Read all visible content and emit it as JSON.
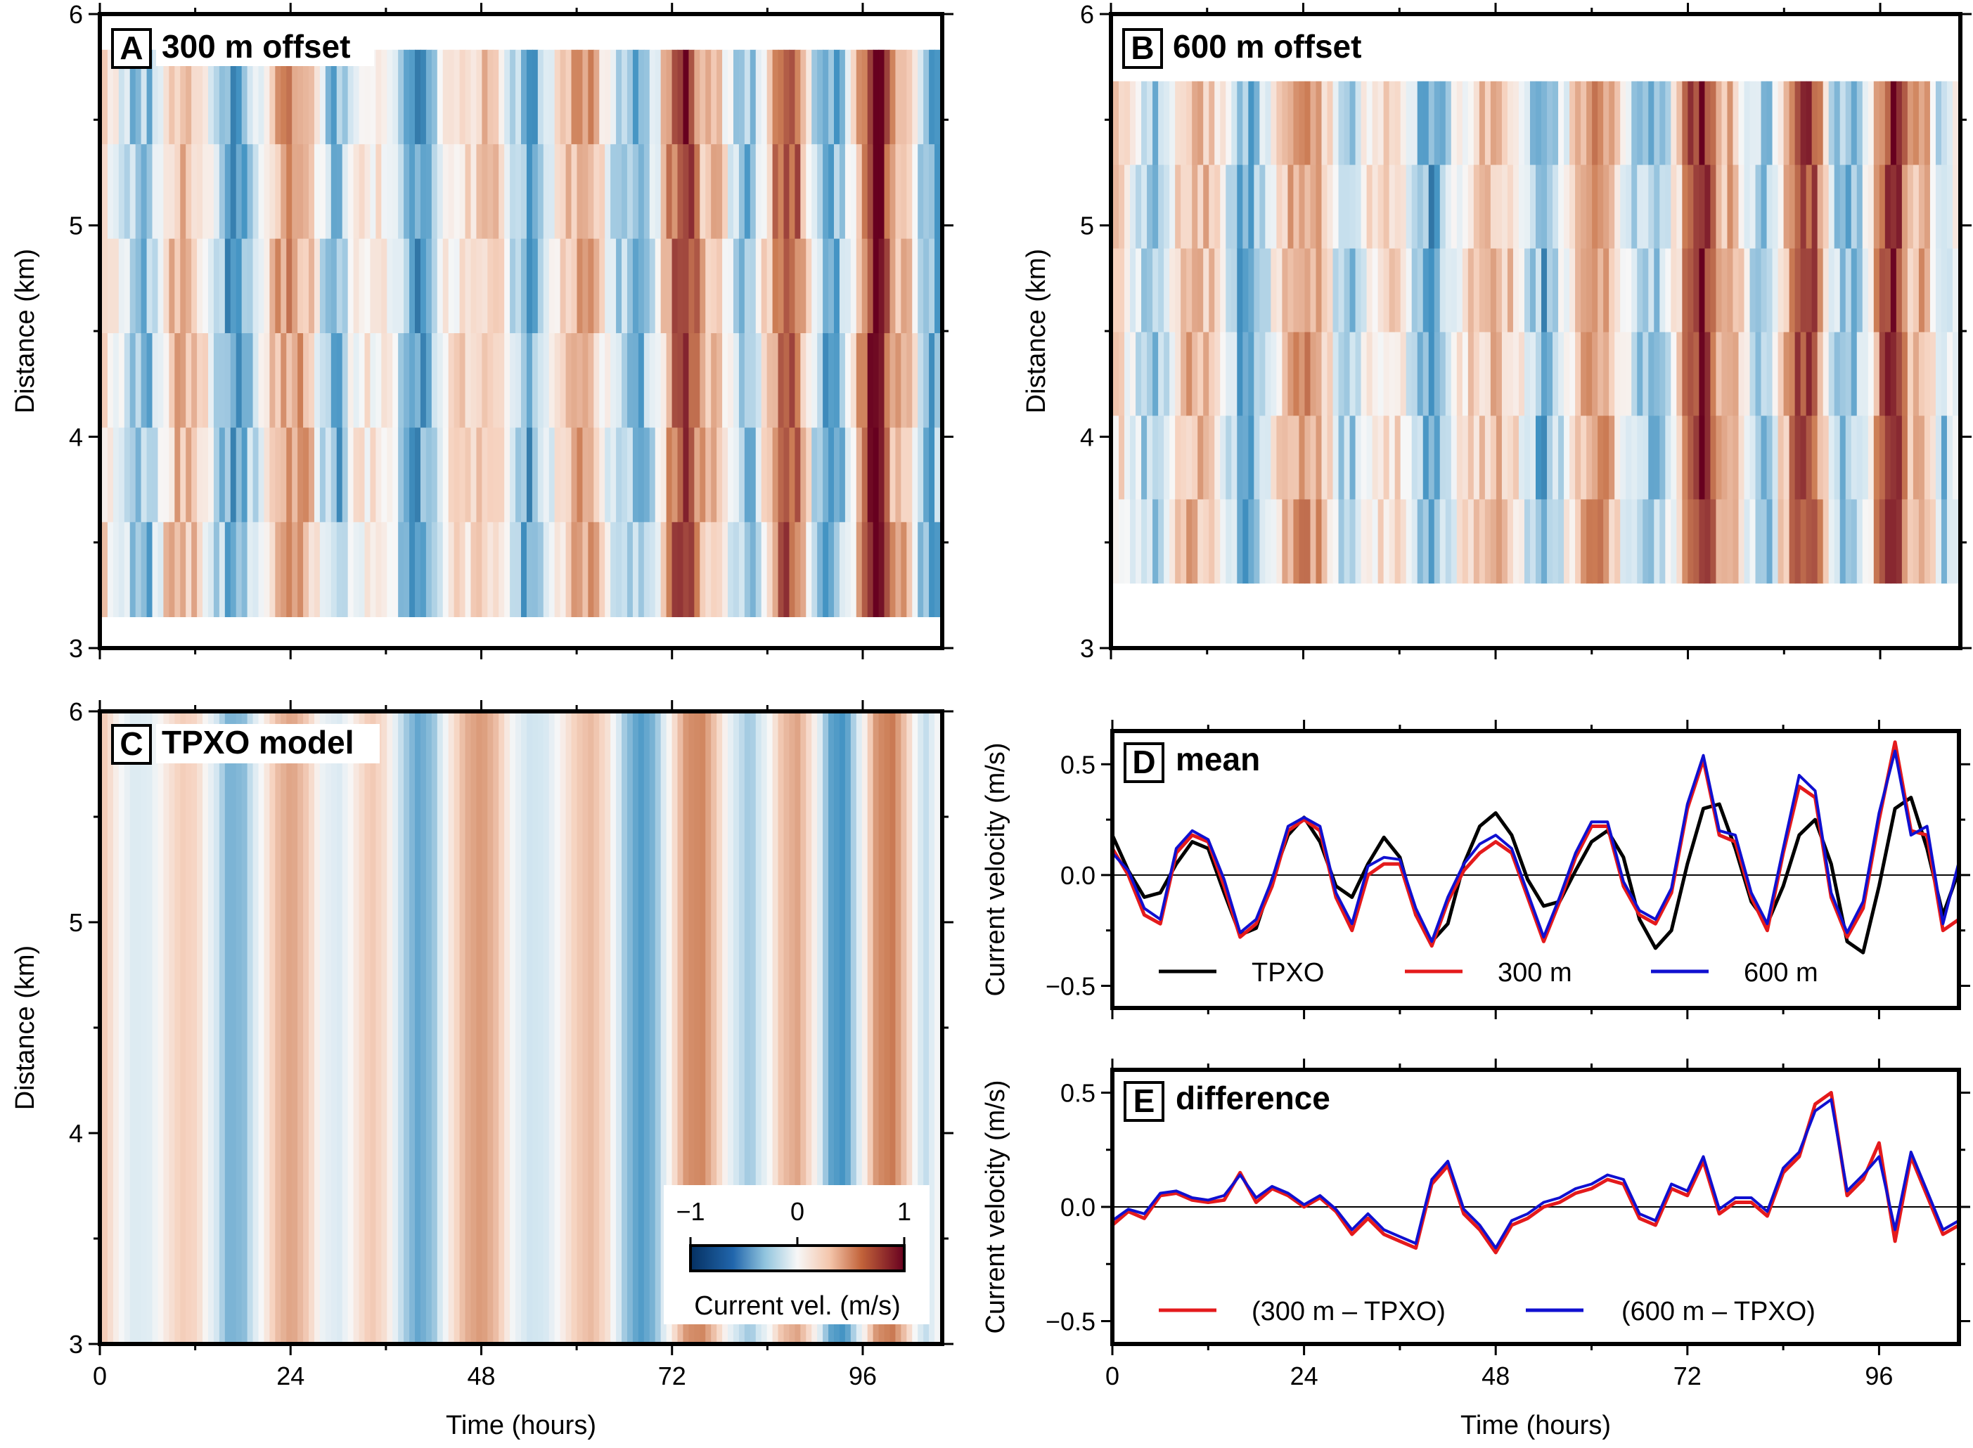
{
  "colors": {
    "neg_strong": "#053061",
    "neg_mid": "#4393c3",
    "neg_light": "#d1e5f0",
    "zero": "#f7f7f7",
    "pos_light": "#f6d2bf",
    "pos_mid": "#cc7d55",
    "pos_strong": "#67001f",
    "tpxo_line": "#000000",
    "line_300": "#e41a1c",
    "line_600": "#1010d0"
  },
  "chart_data": [
    {
      "panel": "A",
      "type": "heatmap",
      "title": "300 m offset",
      "xlabel": "",
      "ylabel": "Distance (km)",
      "xlim": [
        0,
        106
      ],
      "ylim": [
        3,
        6
      ],
      "xticks": [
        0,
        24,
        48,
        72,
        96
      ],
      "yticks": [
        "3",
        "4",
        "5",
        "6"
      ],
      "data_extent_km": [
        3.14,
        5.84
      ],
      "colorscale": [
        -1,
        1
      ]
    },
    {
      "panel": "B",
      "type": "heatmap",
      "title": "600 m offset",
      "xlabel": "",
      "ylabel": "Distance (km)",
      "xlim": [
        0,
        106
      ],
      "ylim": [
        3,
        6
      ],
      "xticks": [
        0,
        24,
        48,
        72,
        96
      ],
      "yticks": [
        "3",
        "4",
        "5",
        "6"
      ],
      "data_extent_km": [
        3.3,
        5.69
      ],
      "colorscale": [
        -1,
        1
      ]
    },
    {
      "panel": "C",
      "type": "heatmap",
      "title": "TPXO model",
      "xlabel": "Time (hours)",
      "ylabel": "Distance (km)",
      "xlim": [
        0,
        106
      ],
      "ylim": [
        3,
        6
      ],
      "xticks": [
        "0",
        "24",
        "48",
        "72",
        "96"
      ],
      "yticks": [
        "3",
        "4",
        "5",
        "6"
      ],
      "colorscale": [
        -1,
        1
      ],
      "colorbar": {
        "label": "Current vel. (m/s)",
        "ticks": [
          "−1",
          "0",
          "1"
        ]
      }
    },
    {
      "panel": "D",
      "type": "line",
      "title": "mean",
      "xlabel": "",
      "ylabel": "Current velocity (m/s)",
      "xlim": [
        0,
        106
      ],
      "ylim": [
        -0.6,
        0.65
      ],
      "xticks": [
        0,
        24,
        48,
        72,
        96
      ],
      "yticks": [
        "−0.5",
        "0.0",
        "0.5"
      ],
      "x": [
        0,
        2,
        4,
        6,
        8,
        10,
        12,
        14,
        16,
        18,
        20,
        22,
        24,
        26,
        28,
        30,
        32,
        34,
        36,
        38,
        40,
        42,
        44,
        46,
        48,
        50,
        52,
        54,
        56,
        58,
        60,
        62,
        64,
        66,
        68,
        70,
        72,
        74,
        76,
        78,
        80,
        82,
        84,
        86,
        88,
        90,
        92,
        94,
        96,
        98,
        100,
        102,
        104,
        106
      ],
      "series": [
        {
          "name": "TPXO",
          "values": [
            0.18,
            0.02,
            -0.1,
            -0.08,
            0.05,
            0.15,
            0.12,
            -0.08,
            -0.27,
            -0.24,
            -0.02,
            0.18,
            0.26,
            0.15,
            -0.05,
            -0.1,
            0.05,
            0.17,
            0.08,
            -0.18,
            -0.3,
            -0.22,
            0.05,
            0.22,
            0.28,
            0.18,
            -0.02,
            -0.14,
            -0.12,
            0.02,
            0.15,
            0.2,
            0.08,
            -0.2,
            -0.33,
            -0.25,
            0.05,
            0.3,
            0.32,
            0.12,
            -0.12,
            -0.22,
            -0.05,
            0.18,
            0.25,
            0.05,
            -0.3,
            -0.35,
            -0.05,
            0.3,
            0.35,
            0.12,
            -0.18,
            0.02
          ]
        },
        {
          "name": "300 m",
          "values": [
            0.12,
            0.0,
            -0.18,
            -0.22,
            0.1,
            0.18,
            0.15,
            -0.05,
            -0.28,
            -0.22,
            -0.05,
            0.2,
            0.25,
            0.2,
            -0.1,
            -0.25,
            0.0,
            0.05,
            0.05,
            -0.18,
            -0.32,
            -0.12,
            0.02,
            0.1,
            0.15,
            0.1,
            -0.1,
            -0.3,
            -0.12,
            0.08,
            0.22,
            0.22,
            -0.05,
            -0.18,
            -0.22,
            -0.08,
            0.3,
            0.52,
            0.18,
            0.15,
            -0.1,
            -0.25,
            0.1,
            0.4,
            0.35,
            -0.1,
            -0.28,
            -0.15,
            0.25,
            0.6,
            0.2,
            0.18,
            -0.25,
            -0.2
          ]
        },
        {
          "name": "600 m",
          "values": [
            0.1,
            0.02,
            -0.15,
            -0.2,
            0.12,
            0.2,
            0.16,
            -0.02,
            -0.26,
            -0.2,
            -0.02,
            0.22,
            0.26,
            0.22,
            -0.08,
            -0.22,
            0.04,
            0.08,
            0.07,
            -0.15,
            -0.3,
            -0.1,
            0.05,
            0.14,
            0.18,
            0.12,
            -0.08,
            -0.28,
            -0.1,
            0.1,
            0.24,
            0.24,
            -0.03,
            -0.16,
            -0.2,
            -0.06,
            0.32,
            0.54,
            0.2,
            0.18,
            -0.08,
            -0.22,
            0.12,
            0.45,
            0.38,
            -0.08,
            -0.26,
            -0.12,
            0.28,
            0.56,
            0.18,
            0.22,
            -0.22,
            0.06
          ]
        }
      ],
      "legend": [
        "TPXO",
        "300 m",
        "600 m"
      ]
    },
    {
      "panel": "E",
      "type": "line",
      "title": "difference",
      "xlabel": "Time (hours)",
      "ylabel": "Current velocity (m/s)",
      "xlim": [
        0,
        106
      ],
      "ylim": [
        -0.6,
        0.6
      ],
      "xticks": [
        "0",
        "24",
        "48",
        "72",
        "96"
      ],
      "yticks": [
        "−0.5",
        "0.0",
        "0.5"
      ],
      "x": [
        0,
        2,
        4,
        6,
        8,
        10,
        12,
        14,
        16,
        18,
        20,
        22,
        24,
        26,
        28,
        30,
        32,
        34,
        36,
        38,
        40,
        42,
        44,
        46,
        48,
        50,
        52,
        54,
        56,
        58,
        60,
        62,
        64,
        66,
        68,
        70,
        72,
        74,
        76,
        78,
        80,
        82,
        84,
        86,
        88,
        90,
        92,
        94,
        96,
        98,
        100,
        102,
        104,
        106
      ],
      "series": [
        {
          "name": "(300 m – TPXO)",
          "values": [
            -0.08,
            -0.02,
            -0.05,
            0.05,
            0.06,
            0.03,
            0.02,
            0.03,
            0.15,
            0.02,
            0.08,
            0.05,
            0.0,
            0.04,
            -0.02,
            -0.12,
            -0.05,
            -0.12,
            -0.15,
            -0.18,
            0.1,
            0.18,
            -0.03,
            -0.1,
            -0.2,
            -0.08,
            -0.05,
            0.0,
            0.02,
            0.06,
            0.08,
            0.12,
            0.1,
            -0.05,
            -0.08,
            0.08,
            0.05,
            0.2,
            -0.03,
            0.02,
            0.02,
            -0.04,
            0.15,
            0.22,
            0.45,
            0.5,
            0.05,
            0.12,
            0.28,
            -0.15,
            0.22,
            0.05,
            -0.12,
            -0.08
          ]
        },
        {
          "name": "(600 m – TPXO)",
          "values": [
            -0.06,
            -0.01,
            -0.03,
            0.06,
            0.07,
            0.04,
            0.03,
            0.05,
            0.14,
            0.04,
            0.09,
            0.06,
            0.01,
            0.05,
            -0.01,
            -0.1,
            -0.03,
            -0.1,
            -0.13,
            -0.16,
            0.12,
            0.2,
            -0.01,
            -0.08,
            -0.18,
            -0.06,
            -0.03,
            0.02,
            0.04,
            0.08,
            0.1,
            0.14,
            0.12,
            -0.03,
            -0.06,
            0.1,
            0.07,
            0.22,
            -0.01,
            0.04,
            0.04,
            -0.02,
            0.17,
            0.24,
            0.42,
            0.47,
            0.07,
            0.14,
            0.22,
            -0.1,
            0.24,
            0.07,
            -0.1,
            -0.06
          ]
        }
      ],
      "legend": [
        "(300 m – TPXO)",
        "(600 m – TPXO)"
      ]
    }
  ]
}
